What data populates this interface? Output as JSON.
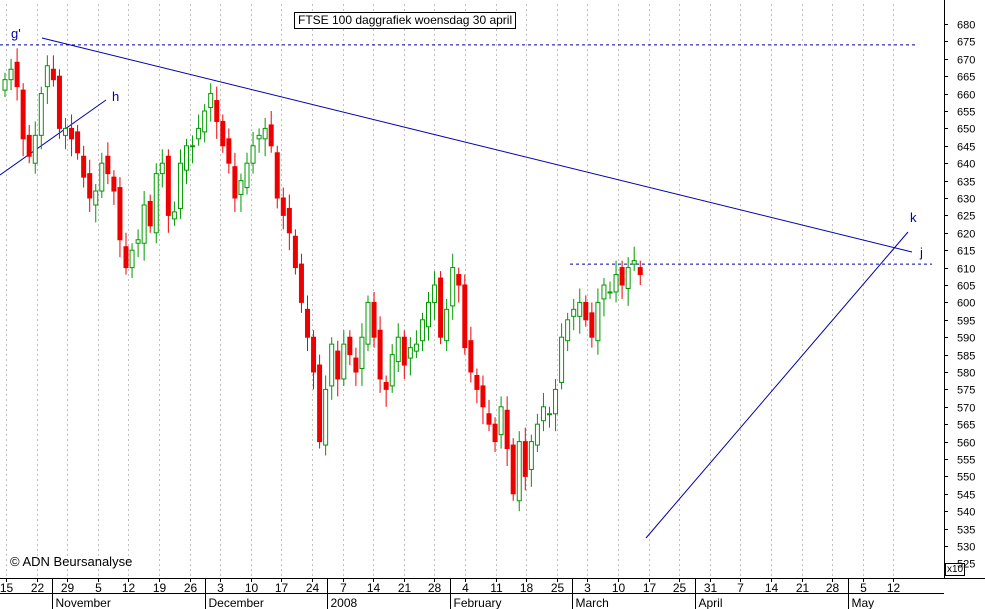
{
  "title": "FTSE 100 daggrafiek woensdag 30 april",
  "copyright": "© ADN Beursanalyse",
  "scale_label": "x10",
  "colors": {
    "up": "#009900",
    "down": "#ee0000",
    "trendline": "#0000aa",
    "grid": "#c0c0c0",
    "axis": "#000000"
  },
  "chart_data": {
    "type": "candlestick",
    "title": "FTSE 100 daggrafiek woensdag 30 april",
    "ylim": [
      520,
      685
    ],
    "yticks": [
      525,
      530,
      535,
      540,
      545,
      550,
      555,
      560,
      565,
      570,
      575,
      580,
      585,
      590,
      595,
      600,
      605,
      610,
      615,
      620,
      625,
      630,
      635,
      640,
      645,
      650,
      655,
      660,
      665,
      670,
      675,
      680
    ],
    "y_unit_note": "x10",
    "x_day_labels": [
      "15",
      "22",
      "29",
      "5",
      "12",
      "19",
      "26",
      "3",
      "10",
      "17",
      "24",
      "7",
      "14",
      "21",
      "28",
      "4",
      "11",
      "18",
      "25",
      "3",
      "10",
      "17",
      "25",
      "31",
      "7",
      "14",
      "21",
      "28",
      "5",
      "12"
    ],
    "x_month_labels": [
      "November",
      "December",
      "2008",
      "February",
      "March",
      "April",
      "May"
    ],
    "annotations": [
      {
        "label": "g'",
        "type": "horizontal",
        "value": 674
      },
      {
        "label": "h",
        "type": "trendline"
      },
      {
        "label": "k",
        "type": "trendline"
      },
      {
        "label": "j",
        "type": "horizontal",
        "value": 611
      }
    ],
    "closes": [
      664,
      667,
      662,
      647,
      642,
      648,
      660,
      668,
      664,
      650,
      650,
      647,
      643,
      636,
      630,
      632,
      640,
      637,
      632,
      618,
      610,
      615,
      618,
      628,
      622,
      637,
      640,
      625,
      626,
      640,
      645,
      645,
      650,
      655,
      660,
      652,
      645,
      640,
      630,
      635,
      640,
      645,
      648,
      650,
      645,
      630,
      625,
      620,
      610,
      600,
      590,
      580,
      560,
      575,
      588,
      578,
      588,
      585,
      580,
      590,
      600,
      590,
      578,
      575,
      585,
      590,
      582,
      587,
      588,
      595,
      600,
      605,
      590,
      598,
      610,
      605,
      587,
      580,
      575,
      570,
      565,
      560,
      570,
      558,
      545,
      560,
      550,
      560,
      565,
      570,
      568,
      575,
      590,
      595,
      598,
      600,
      595,
      590,
      600,
      605,
      603,
      608,
      605,
      610,
      612,
      608
    ]
  }
}
